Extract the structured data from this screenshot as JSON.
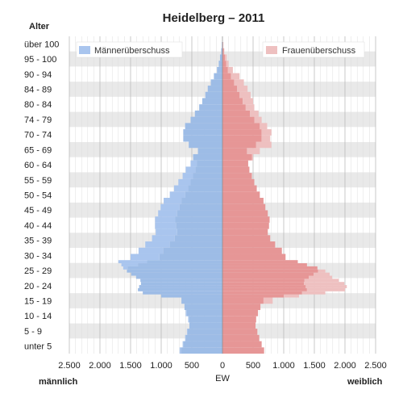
{
  "chart_data": {
    "type": "bar",
    "title": "Heidelberg – 2011",
    "y_axis_title": "Alter",
    "x_axis_title": "EW",
    "left_side_label": "männlich",
    "right_side_label": "weiblich",
    "age_group_labels": [
      "über 100",
      "95 - 100",
      "90 - 94",
      "84 - 89",
      "80 - 84",
      "74 - 79",
      "70 - 74",
      "65 - 69",
      "60 - 64",
      "55 - 59",
      "50 - 54",
      "45 - 49",
      "40 - 44",
      "35 - 39",
      "30 - 34",
      "25 - 29",
      "20 - 24",
      "15 - 19",
      "10 - 14",
      "5 - 9",
      "unter 5"
    ],
    "x_tick_labels": [
      "2.500",
      "2.000",
      "1.500",
      "1.000",
      "500",
      "0",
      "500",
      "1.000",
      "1.500",
      "2.000",
      "2.500"
    ],
    "xlim": [
      -2500,
      2500
    ],
    "age_range": [
      0,
      100
    ],
    "legend": {
      "position": "top",
      "items": [
        "Männerüberschuss",
        "Frauenüberschuss"
      ]
    },
    "colors": {
      "male_common": "#9dbce6",
      "female_common": "#e69696",
      "male_surplus": "#a9c5ee",
      "female_surplus": "#eec0c0",
      "band": "#e9e9e9",
      "grid": "#cccccc"
    },
    "ages": [
      0,
      2,
      4,
      6,
      8,
      10,
      12,
      14,
      16,
      18,
      19,
      20,
      21,
      22,
      23,
      24,
      25,
      26,
      27,
      28,
      29,
      30,
      32,
      34,
      36,
      38,
      40,
      42,
      44,
      46,
      48,
      50,
      52,
      54,
      56,
      58,
      60,
      62,
      64,
      66,
      68,
      70,
      72,
      74,
      76,
      78,
      80,
      82,
      84,
      86,
      88,
      90,
      92,
      94,
      96,
      98,
      100
    ],
    "male": [
      700,
      650,
      610,
      580,
      540,
      560,
      600,
      620,
      670,
      1000,
      1300,
      1380,
      1360,
      1330,
      1340,
      1410,
      1490,
      1560,
      1620,
      1650,
      1700,
      1500,
      1370,
      1260,
      1150,
      1090,
      1100,
      1100,
      1050,
      1010,
      960,
      860,
      790,
      720,
      650,
      600,
      520,
      480,
      400,
      550,
      640,
      640,
      610,
      520,
      450,
      380,
      330,
      280,
      240,
      190,
      140,
      90,
      60,
      40,
      20,
      10,
      5
    ],
    "female": [
      680,
      640,
      600,
      570,
      540,
      550,
      580,
      620,
      820,
      1250,
      1680,
      2000,
      2030,
      1990,
      1900,
      1790,
      1750,
      1680,
      1550,
      1380,
      1230,
      1030,
      970,
      860,
      780,
      740,
      760,
      770,
      740,
      700,
      670,
      610,
      560,
      520,
      480,
      440,
      420,
      500,
      610,
      800,
      780,
      800,
      730,
      640,
      590,
      520,
      500,
      460,
      410,
      350,
      280,
      170,
      100,
      70,
      30,
      15,
      8
    ]
  }
}
